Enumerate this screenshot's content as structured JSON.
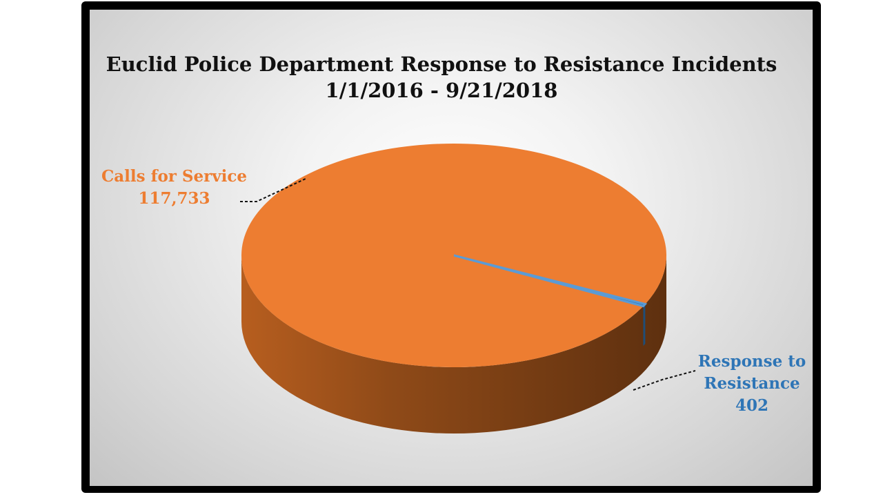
{
  "chart_data": {
    "type": "pie",
    "style": "3d",
    "title": [
      "Euclid Police Department Response to Resistance Incidents",
      "1/1/2016 - 9/21/2018"
    ],
    "slices": [
      {
        "label": [
          "Calls for Service"
        ],
        "value": 117733,
        "value_label": "117,733",
        "color": "#ED7D31"
      },
      {
        "label": [
          "Response to",
          "Resistance"
        ],
        "value": 402,
        "value_label": "402",
        "color": "#2E75B6"
      }
    ],
    "data_label_colors": [
      "#ED7D31",
      "#2E75B6"
    ],
    "legend": "none"
  }
}
